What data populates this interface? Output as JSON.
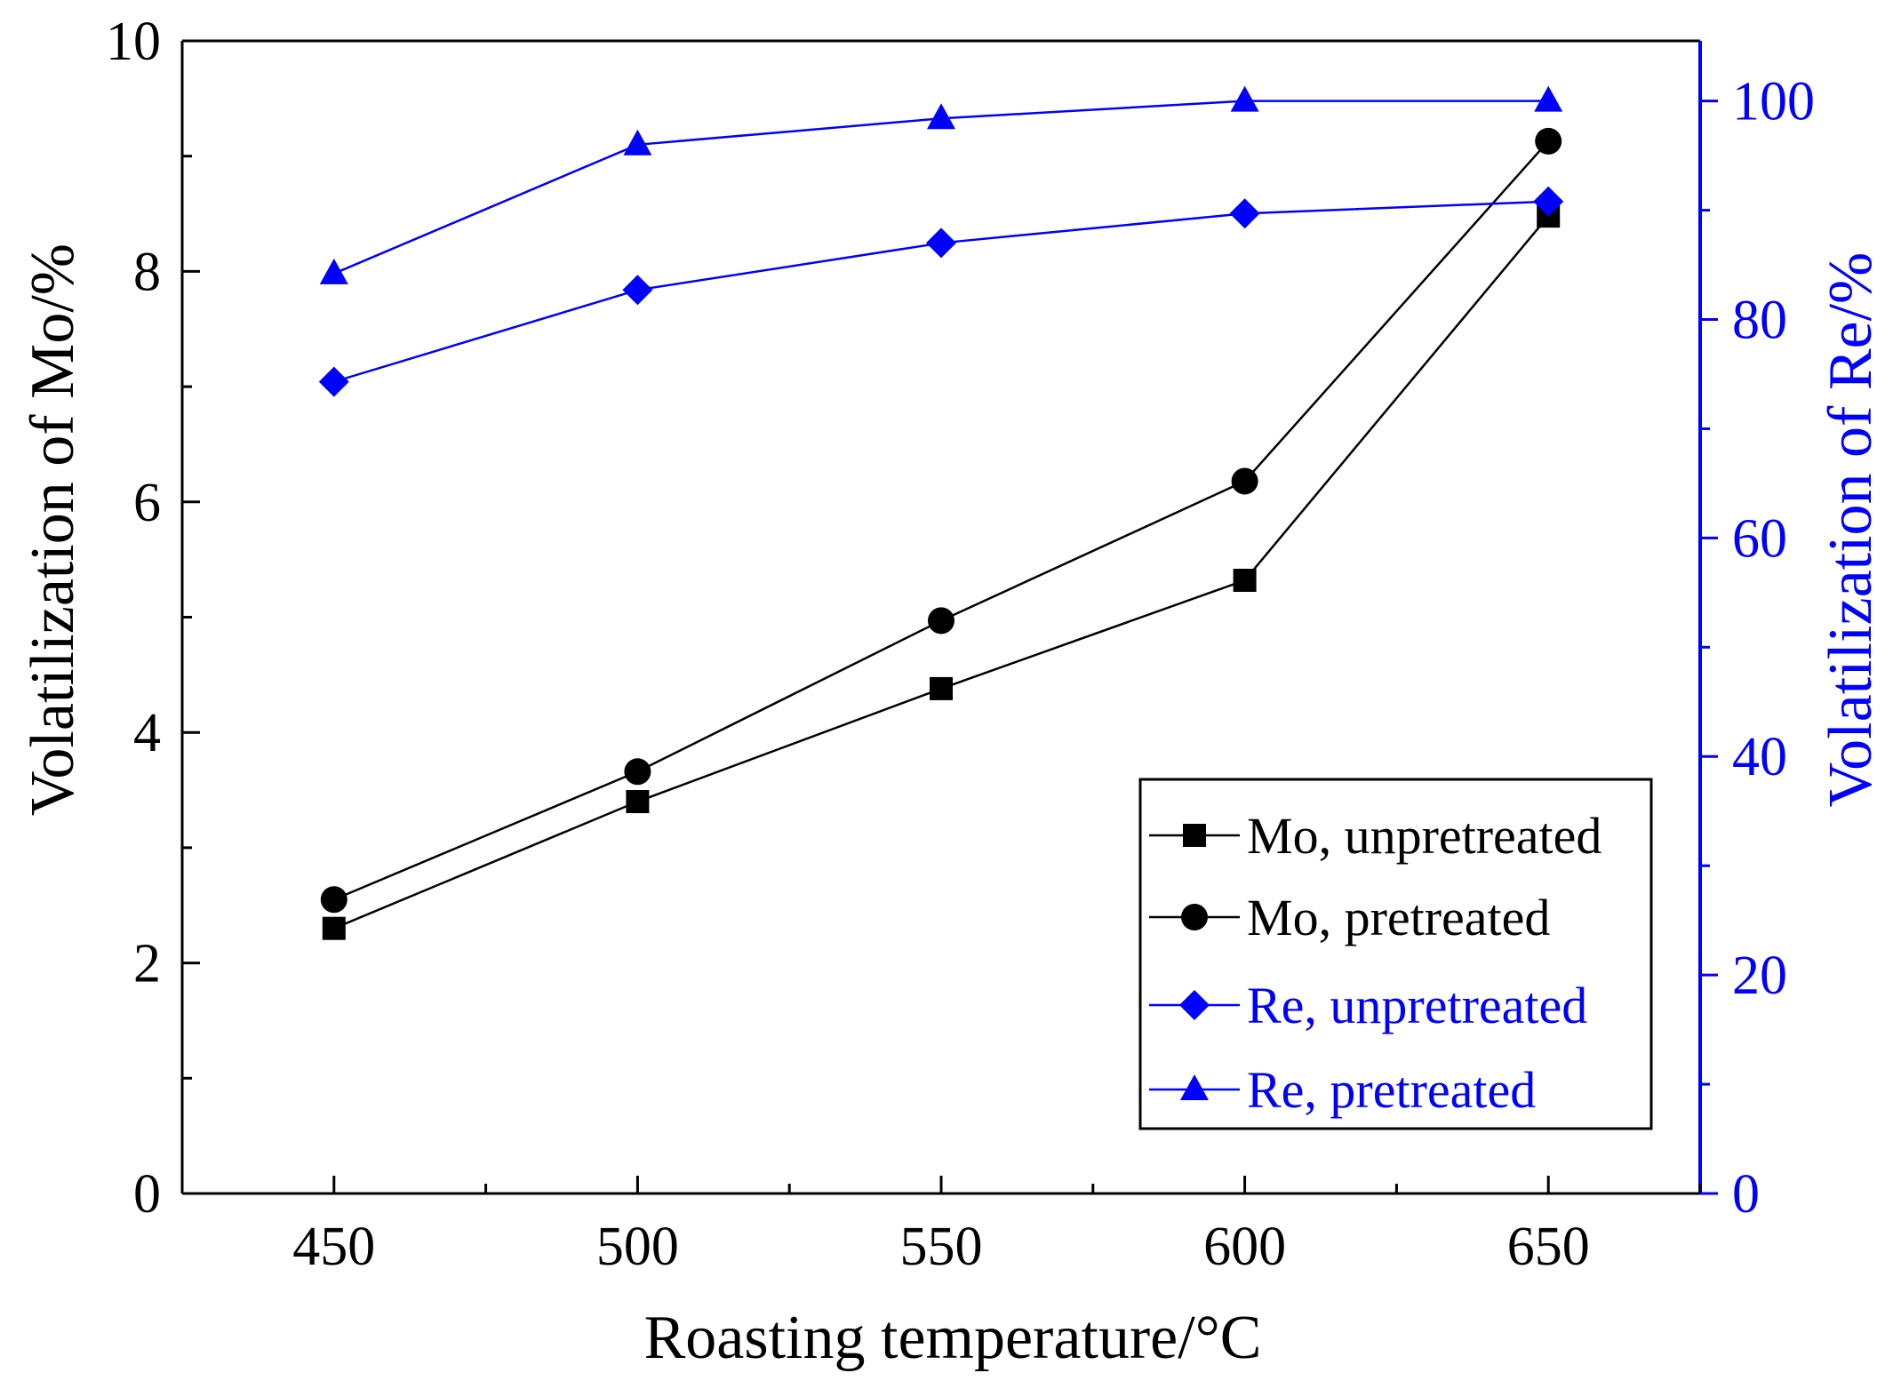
{
  "chart_data": {
    "type": "line",
    "xlabel": "Roasting temperature/°C",
    "ylabel_left": "Volatilization of Mo/%",
    "ylabel_right": "Volatilization of Re/%",
    "x": [
      450,
      500,
      550,
      600,
      650
    ],
    "xlim": [
      425,
      675
    ],
    "x_ticks": [
      "450",
      "500",
      "550",
      "600",
      "650"
    ],
    "ylim_left": [
      0,
      10
    ],
    "ylim_right": [
      0,
      105.5
    ],
    "y_ticks_left": [
      "0",
      "2",
      "4",
      "6",
      "8",
      "10"
    ],
    "y_ticks_right": [
      "0",
      "20",
      "40",
      "60",
      "80",
      "100"
    ],
    "colors": {
      "mo": "#000000",
      "re": "#0000ff"
    },
    "legend_position": "bottom-right",
    "series": [
      {
        "name": "Mo, unpretreated",
        "axis": "left",
        "marker": "square",
        "color": "#000000",
        "values": [
          2.3,
          3.4,
          4.38,
          5.32,
          8.48
        ]
      },
      {
        "name": "Mo, pretreated",
        "axis": "left",
        "marker": "circle",
        "color": "#000000",
        "values": [
          2.55,
          3.66,
          4.97,
          6.18,
          9.13
        ]
      },
      {
        "name": "Re, unpretreated",
        "axis": "right",
        "marker": "diamond",
        "color": "#0000ff",
        "values": [
          74.3,
          82.7,
          87.0,
          89.7,
          90.8
        ]
      },
      {
        "name": "Re, pretreated",
        "axis": "right",
        "marker": "triangle",
        "color": "#0000ff",
        "values": [
          84.2,
          96.0,
          98.4,
          100.0,
          100.0
        ]
      }
    ]
  }
}
